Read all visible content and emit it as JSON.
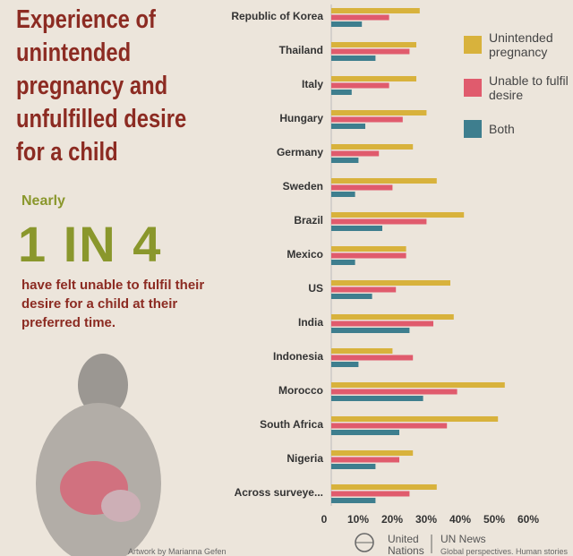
{
  "chart_data": {
    "type": "hbar",
    "title_lines": [
      "Experience of",
      "unintended",
      "pregnancy and",
      "unfulfilled desire",
      "for a child"
    ],
    "categories": [
      "Republic of Korea",
      "Thailand",
      "Italy",
      "Hungary",
      "Germany",
      "Sweden",
      "Brazil",
      "Mexico",
      "US",
      "India",
      "Indonesia",
      "Morocco",
      "South Africa",
      "Nigeria",
      "Across surveye..."
    ],
    "series": [
      {
        "name": "Unintended pregnancy",
        "color": "#d8b23c",
        "values": [
          26,
          25,
          25,
          28,
          24,
          31,
          39,
          22,
          35,
          36,
          18,
          51,
          49,
          24,
          31
        ]
      },
      {
        "name": "Unable to fulfil desire",
        "color": "#e05b6d",
        "values": [
          17,
          23,
          17,
          21,
          14,
          18,
          28,
          22,
          19,
          30,
          24,
          37,
          34,
          20,
          23
        ]
      },
      {
        "name": "Both",
        "color": "#3e7e8e",
        "values": [
          9,
          13,
          6,
          10,
          8,
          7,
          15,
          7,
          12,
          23,
          8,
          27,
          20,
          13,
          13
        ]
      }
    ],
    "xlim": [
      0,
      60
    ],
    "xticks": [
      0,
      {
        "value": 10,
        "label": "10%"
      },
      {
        "value": 20,
        "label": "20%"
      },
      {
        "value": 30,
        "label": "30%"
      },
      {
        "value": 40,
        "label": "40%"
      },
      {
        "value": 50,
        "label": "50%"
      },
      {
        "value": 60,
        "label": "60%"
      }
    ],
    "legend": "upper right"
  },
  "infographic": {
    "lead": "Nearly",
    "headline": "1 IN 4",
    "body": "have felt unable to fulfil their desire for a child at their preferred time.",
    "credit": "Artwork by Marianna Gefen",
    "logo_name_1": "United",
    "logo_name_2": "Nations",
    "brand": "UN News",
    "tagline": "Global perspectives. Human stories"
  }
}
